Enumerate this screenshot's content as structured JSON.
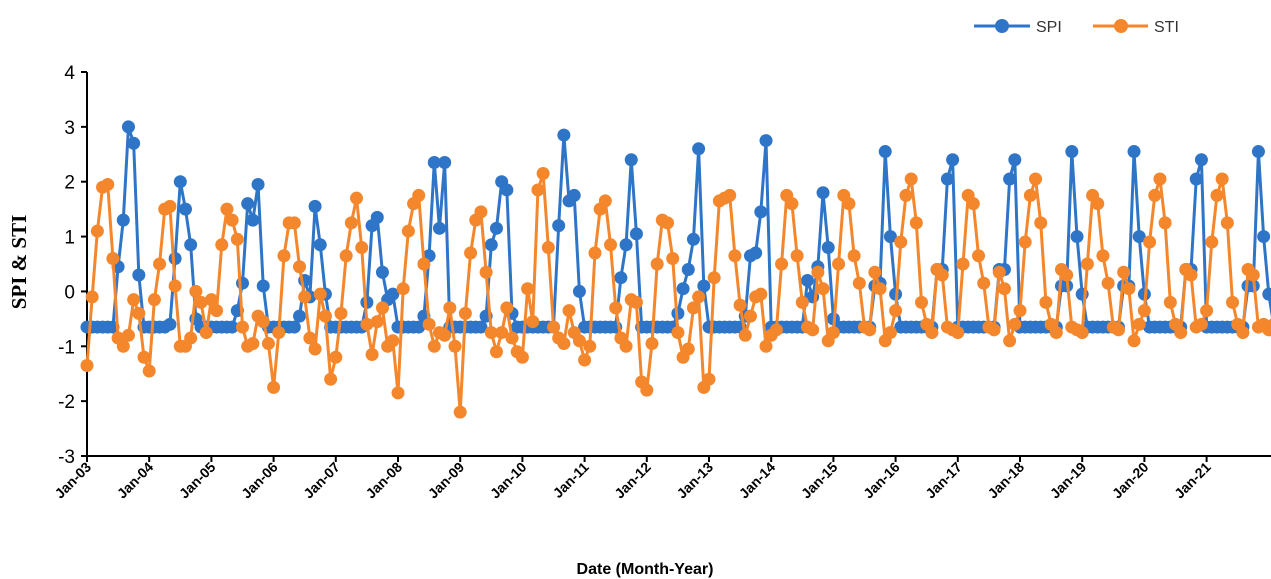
{
  "chart_data": {
    "type": "line",
    "xlabel": "Date (Month-Year)",
    "ylabel": "SPI & STI",
    "ylim": [
      -3,
      4
    ],
    "yticks": [
      "4",
      "3",
      "2",
      "1",
      "0",
      "-1",
      "-2",
      "-3"
    ],
    "xtick_labels": [
      "Jan-03",
      "Jan-04",
      "Jan-05",
      "Jan-06",
      "Jan-07",
      "Jan-08",
      "Jan-09",
      "Jan-10",
      "Jan-11",
      "Jan-12",
      "Jan-13",
      "Jan-14",
      "Jan-15",
      "Jan-16",
      "Jan-17",
      "Jan-18",
      "Jan-19",
      "Jan-20",
      "Jan-21"
    ],
    "start_month": "Jan-03",
    "grid": false,
    "legend_position": "top-right",
    "series": [
      {
        "name": "SPI",
        "color": "#2E75C8",
        "values": [
          -0.65,
          -0.65,
          -0.65,
          -0.65,
          -0.65,
          -0.65,
          0.45,
          1.3,
          3.0,
          2.7,
          0.3,
          -0.65,
          -0.65,
          -0.65,
          -0.65,
          -0.65,
          -0.6,
          0.6,
          2.0,
          1.5,
          0.85,
          -0.5,
          -0.65,
          -0.65,
          -0.65,
          -0.65,
          -0.65,
          -0.65,
          -0.65,
          -0.35,
          0.15,
          1.6,
          1.3,
          1.95,
          0.1,
          -0.65,
          -0.65,
          -0.65,
          -0.65,
          -0.65,
          -0.65,
          -0.45,
          0.2,
          -0.1,
          1.55,
          0.85,
          -0.05,
          -0.65,
          -0.65,
          -0.65,
          -0.65,
          -0.65,
          -0.65,
          -0.65,
          -0.2,
          1.2,
          1.35,
          0.35,
          -0.15,
          -0.05,
          -0.65,
          -0.65,
          -0.65,
          -0.65,
          -0.65,
          -0.45,
          0.65,
          2.35,
          1.15,
          2.35,
          -0.65,
          -0.65,
          -0.65,
          -0.65,
          -0.65,
          -0.65,
          -0.65,
          -0.45,
          0.85,
          1.15,
          2.0,
          1.85,
          -0.4,
          -0.65,
          -0.65,
          -0.65,
          -0.65,
          -0.65,
          -0.65,
          -0.65,
          -0.65,
          1.2,
          2.85,
          1.65,
          1.75,
          0.0,
          -0.65,
          -0.65,
          -0.65,
          -0.65,
          -0.65,
          -0.65,
          -0.65,
          0.25,
          0.85,
          2.4,
          1.05,
          -0.65,
          -0.65,
          -0.65,
          -0.65,
          -0.65,
          -0.65,
          -0.65,
          -0.4,
          0.05,
          0.4,
          0.95,
          2.6,
          0.1,
          -0.65,
          -0.65,
          -0.65,
          -0.65,
          -0.65,
          -0.65,
          -0.65,
          -0.45,
          0.65,
          0.7,
          1.45,
          2.75,
          -0.65,
          -0.65,
          -0.65,
          -0.65,
          -0.65,
          -0.65,
          -0.65,
          0.2,
          -0.1,
          0.45,
          1.8,
          0.8,
          -0.5,
          -0.65,
          -0.65,
          -0.65,
          -0.65,
          -0.65,
          -0.65,
          -0.65,
          0.1,
          0.15,
          2.55,
          1.0,
          -0.05,
          -0.65,
          -0.65,
          -0.65,
          -0.65,
          -0.65,
          -0.65,
          -0.65,
          0.4,
          0.4,
          2.05,
          2.4,
          -0.65,
          -0.65,
          -0.65,
          -0.65,
          -0.65,
          -0.65,
          -0.65,
          -0.65,
          0.4,
          0.4,
          2.05,
          2.4,
          -0.65,
          -0.65,
          -0.65,
          -0.65,
          -0.65,
          -0.65,
          -0.65,
          -0.65,
          0.1,
          0.1,
          2.55,
          1.0,
          -0.05,
          -0.65,
          -0.65,
          -0.65,
          -0.65,
          -0.65,
          -0.65,
          -0.65,
          0.1,
          0.1,
          2.55,
          1.0,
          -0.05,
          -0.65,
          -0.65,
          -0.65,
          -0.65,
          -0.65,
          -0.65,
          -0.65,
          0.4,
          0.4,
          2.05,
          2.4,
          -0.65,
          -0.65,
          -0.65,
          -0.65,
          -0.65,
          -0.65,
          -0.65,
          -0.65,
          0.1,
          0.1,
          2.55,
          1.0,
          -0.05,
          -0.65
        ]
      },
      {
        "name": "STI",
        "color": "#F4862C",
        "values": [
          -1.35,
          -0.1,
          1.1,
          1.9,
          1.95,
          0.6,
          -0.85,
          -1.0,
          -0.8,
          -0.15,
          -0.4,
          -1.2,
          -1.45,
          -0.15,
          0.5,
          1.5,
          1.55,
          0.1,
          -1.0,
          -1.0,
          -0.85,
          0.0,
          -0.2,
          -0.75,
          -0.15,
          -0.35,
          0.85,
          1.5,
          1.3,
          0.95,
          -0.65,
          -1.0,
          -0.95,
          -0.45,
          -0.55,
          -0.95,
          -1.75,
          -0.75,
          0.65,
          1.25,
          1.25,
          0.45,
          -0.1,
          -0.85,
          -1.05,
          -0.05,
          -0.45,
          -1.6,
          -1.2,
          -0.4,
          0.65,
          1.25,
          1.7,
          0.8,
          -0.6,
          -1.15,
          -0.55,
          -0.3,
          -1.0,
          -0.9,
          -1.85,
          0.05,
          1.1,
          1.6,
          1.75,
          0.5,
          -0.6,
          -1.0,
          -0.75,
          -0.8,
          -0.3,
          -1.0,
          -2.2,
          -0.4,
          0.7,
          1.3,
          1.45,
          0.35,
          -0.75,
          -1.1,
          -0.75,
          -0.3,
          -0.85,
          -1.1,
          -1.2,
          0.05,
          -0.55,
          1.85,
          2.15,
          0.8,
          -0.65,
          -0.85,
          -0.95,
          -0.35,
          -0.75,
          -0.9,
          -1.25,
          -1.0,
          0.7,
          1.5,
          1.65,
          0.85,
          -0.3,
          -0.85,
          -1.0,
          -0.15,
          -0.2,
          -1.65,
          -1.8,
          -0.95,
          0.5,
          1.3,
          1.25,
          0.6,
          -0.75,
          -1.2,
          -1.05,
          -0.3,
          -0.1,
          -1.75,
          -1.6,
          0.25,
          1.65,
          1.7,
          1.75,
          0.65,
          -0.25,
          -0.8,
          -0.45,
          -0.1,
          -0.05,
          -1.0,
          -0.8,
          -0.7,
          0.5,
          1.75,
          1.6,
          0.65,
          -0.2,
          -0.65,
          -0.7,
          0.35,
          0.05,
          -0.9,
          -0.75,
          0.5,
          1.75,
          1.6,
          0.65,
          0.15,
          -0.65,
          -0.7,
          0.35,
          0.05,
          -0.9,
          -0.75,
          -0.35,
          0.9,
          1.75,
          2.05,
          1.25,
          -0.2,
          -0.6,
          -0.75,
          0.4,
          0.3,
          -0.65,
          -0.7,
          -0.75,
          0.5,
          1.75,
          1.6,
          0.65,
          0.15,
          -0.65,
          -0.7,
          0.35,
          0.05,
          -0.9,
          -0.6,
          -0.35,
          0.9,
          1.75,
          2.05,
          1.25,
          -0.2,
          -0.6,
          -0.75,
          0.4,
          0.3,
          -0.65,
          -0.7,
          -0.75,
          0.5,
          1.75,
          1.6,
          0.65,
          0.15,
          -0.65,
          -0.7,
          0.35,
          0.05,
          -0.9,
          -0.6,
          -0.35,
          0.9,
          1.75,
          2.05,
          1.25,
          -0.2,
          -0.6,
          -0.75,
          0.4,
          0.3,
          -0.65,
          -0.6,
          -0.35,
          0.9,
          1.75,
          2.05,
          1.25,
          -0.2,
          -0.6,
          -0.75,
          0.4,
          0.3,
          -0.65,
          -0.6,
          -0.7,
          -0.6
        ]
      }
    ]
  }
}
